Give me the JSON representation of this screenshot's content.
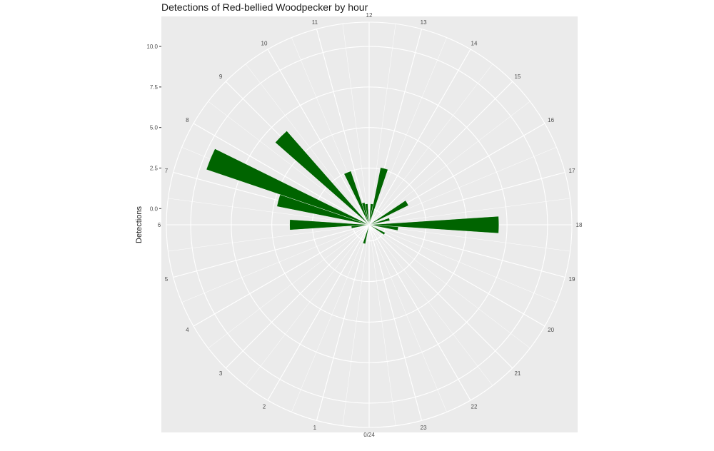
{
  "chart_data": {
    "type": "bar",
    "coord": "polar",
    "title": "Detections of Red-bellied Woodpecker by hour",
    "ylabel": "Detections",
    "yticks": [
      0.0,
      2.5,
      5.0,
      7.5,
      10.0
    ],
    "ytick_labels": [
      "0.0",
      "2.5",
      "5.0",
      "7.5",
      "10.0"
    ],
    "ylim": [
      -1,
      11.5
    ],
    "categories": [
      "0/24",
      "1",
      "2",
      "3",
      "4",
      "5",
      "6",
      "7",
      "8",
      "9",
      "10",
      "11",
      "12",
      "13",
      "14",
      "15",
      "16",
      "17",
      "18",
      "19",
      "20",
      "21",
      "22",
      "23"
    ],
    "bars": [
      {
        "hour": 6.0,
        "value": 3.9
      },
      {
        "hour": 7.0,
        "value": 4.8
      },
      {
        "hour": 7.5,
        "value": 9.6
      },
      {
        "hour": 9.0,
        "value": 6.7
      },
      {
        "hour": 10.5,
        "value": 2.5
      },
      {
        "hour": 11.0,
        "value": 0.4
      },
      {
        "hour": 11.5,
        "value": 0.3
      },
      {
        "hour": 12.5,
        "value": 0.3
      },
      {
        "hour": 13.0,
        "value": 2.6
      },
      {
        "hour": 16.0,
        "value": 1.7
      },
      {
        "hour": 17.0,
        "value": 0.3
      },
      {
        "hour": 18.0,
        "value": 7.0
      },
      {
        "hour": 18.5,
        "value": 0.8
      },
      {
        "hour": 20.0,
        "value": 0.1
      },
      {
        "hour": 1.0,
        "value": 0.2
      },
      {
        "hour": 5.5,
        "value": 0.1
      }
    ],
    "bar_width_hours": 0.5,
    "grid": true,
    "legend": "none",
    "colors": {
      "bar": "#006400",
      "panel": "#ebebeb",
      "grid": "#ffffff",
      "background": "#ffffff"
    }
  }
}
